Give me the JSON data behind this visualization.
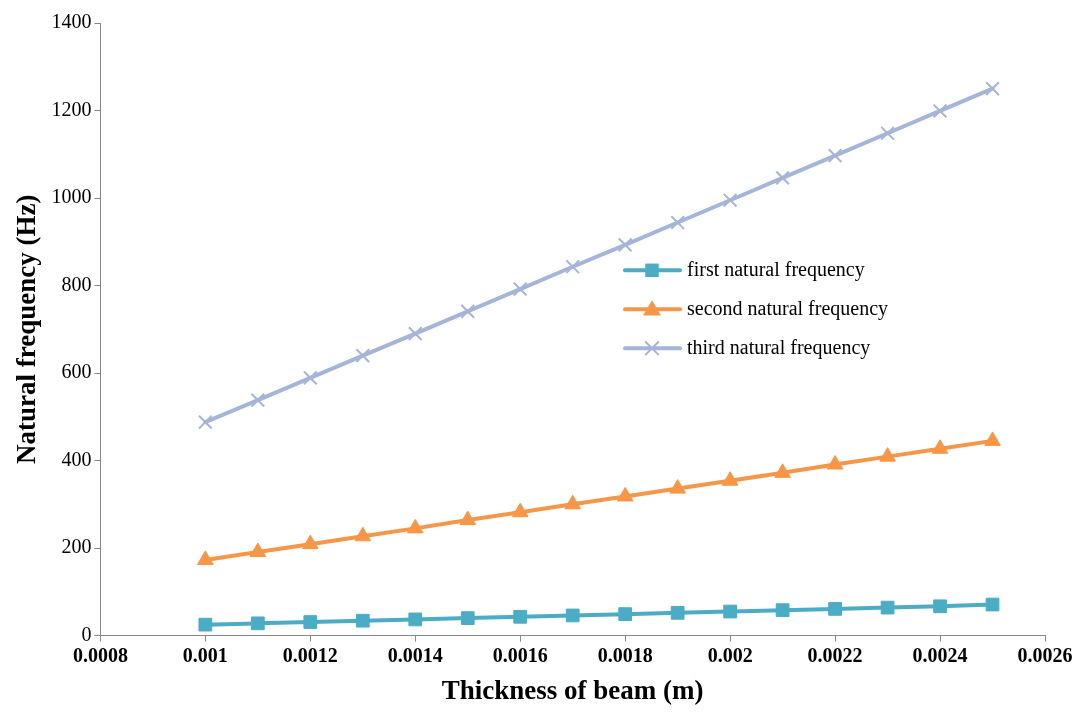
{
  "chart_data": {
    "type": "line",
    "xlabel": "Thickness of beam (m)",
    "ylabel": "Natural frequency (Hz)",
    "x": [
      0.001,
      0.0011,
      0.0012,
      0.0013,
      0.0014,
      0.0015,
      0.0016,
      0.0017,
      0.0018,
      0.0019,
      0.002,
      0.0021,
      0.0022,
      0.0023,
      0.0024,
      0.0025
    ],
    "series": [
      {
        "name": "first natural frequency",
        "color": "#4bacc6",
        "marker": "square",
        "values": [
          25,
          28,
          31,
          34,
          37,
          40,
          43,
          46,
          49,
          52,
          55,
          58,
          61,
          64,
          67,
          71
        ]
      },
      {
        "name": "second natural frequency",
        "color": "#f79646",
        "marker": "triangle",
        "values": [
          173,
          191,
          209,
          227,
          245,
          264,
          282,
          300,
          318,
          336,
          354,
          372,
          391,
          409,
          427,
          445
        ]
      },
      {
        "name": "third natural frequency",
        "color": "#a5b5d7",
        "marker": "cross",
        "values": [
          488,
          538,
          589,
          640,
          690,
          741,
          792,
          843,
          893,
          944,
          995,
          1046,
          1097,
          1148,
          1199,
          1250
        ]
      }
    ],
    "xlim": [
      0.0008,
      0.0026
    ],
    "xticks": [
      0.0008,
      0.001,
      0.0012,
      0.0014,
      0.0016,
      0.0018,
      0.002,
      0.0022,
      0.0024,
      0.0026
    ],
    "ylim": [
      0,
      1400
    ],
    "yticks": [
      0,
      200,
      400,
      600,
      800,
      1000,
      1200,
      1400
    ],
    "grid": false,
    "legend": "right",
    "line_style": "solid"
  }
}
